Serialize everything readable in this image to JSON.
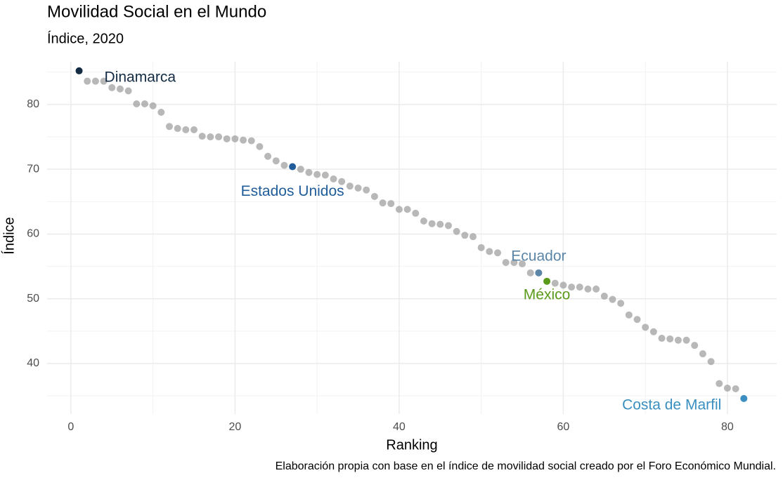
{
  "chart_data": {
    "type": "scatter",
    "title": "Movilidad Social en el Mundo",
    "subtitle": "Índice, 2020",
    "xlabel": "Ranking",
    "ylabel": "Índice",
    "caption": "Elaboración propia con base en el índice de movilidad social creado por el Foro Económico Mundial.",
    "xlim": [
      -2.9,
      86.0
    ],
    "ylim": [
      32.2,
      86.6
    ],
    "xticks": [
      0,
      20,
      40,
      60,
      80
    ],
    "yticks": [
      40,
      50,
      60,
      70,
      80
    ],
    "grid": true,
    "legend": false,
    "series": [
      {
        "color": "#a0a0a0",
        "x": [
          2,
          3,
          4,
          5,
          6,
          7,
          8,
          9,
          10,
          11,
          12,
          13,
          14,
          15,
          16,
          17,
          18,
          19,
          20,
          21,
          22,
          23,
          24,
          25,
          26,
          28,
          29,
          30,
          31,
          32,
          33,
          34,
          35,
          36,
          37,
          38,
          39,
          40,
          41,
          42,
          43,
          44,
          45,
          46,
          47,
          48,
          49,
          50,
          51,
          52,
          53,
          54,
          55,
          56,
          59,
          60,
          61,
          62,
          63,
          64,
          65,
          66,
          67,
          68,
          69,
          70,
          71,
          72,
          73,
          74,
          75,
          76,
          77,
          78,
          79,
          80,
          81
        ],
        "values": [
          83.6,
          83.6,
          83.6,
          82.6,
          82.4,
          82.1,
          80.1,
          80.1,
          79.8,
          78.8,
          76.6,
          76.3,
          76.1,
          76.1,
          75.1,
          75.0,
          75.0,
          74.7,
          74.7,
          74.5,
          74.4,
          73.5,
          72.0,
          71.3,
          70.6,
          70.0,
          69.5,
          69.2,
          69.1,
          68.5,
          68.1,
          67.4,
          67.1,
          66.8,
          65.8,
          64.8,
          64.7,
          63.8,
          63.8,
          63.2,
          62.0,
          61.6,
          61.5,
          61.3,
          60.4,
          59.8,
          59.6,
          57.9,
          57.3,
          57.1,
          55.6,
          55.6,
          55.4,
          54.0,
          52.4,
          52.1,
          51.8,
          51.8,
          51.5,
          51.5,
          50.4,
          49.9,
          49.3,
          47.5,
          46.8,
          45.6,
          44.9,
          43.9,
          43.8,
          43.6,
          43.6,
          42.8,
          41.5,
          40.3,
          36.9,
          36.2,
          36.1
        ]
      },
      {
        "name": "Dinamarca",
        "color": "#132b43",
        "x": [
          1
        ],
        "values": [
          85.2
        ]
      },
      {
        "name": "Estados Unidos",
        "color": "#1f5c99",
        "x": [
          27
        ],
        "values": [
          70.4
        ]
      },
      {
        "name": "Ecuador",
        "color": "#5b86a8",
        "x": [
          57
        ],
        "values": [
          54.0
        ]
      },
      {
        "name": "México",
        "color": "#5a9a1a",
        "x": [
          58
        ],
        "values": [
          52.7
        ]
      },
      {
        "name": "Costa de Marfil",
        "color": "#3a8fc0",
        "x": [
          82
        ],
        "values": [
          34.6
        ]
      }
    ]
  }
}
